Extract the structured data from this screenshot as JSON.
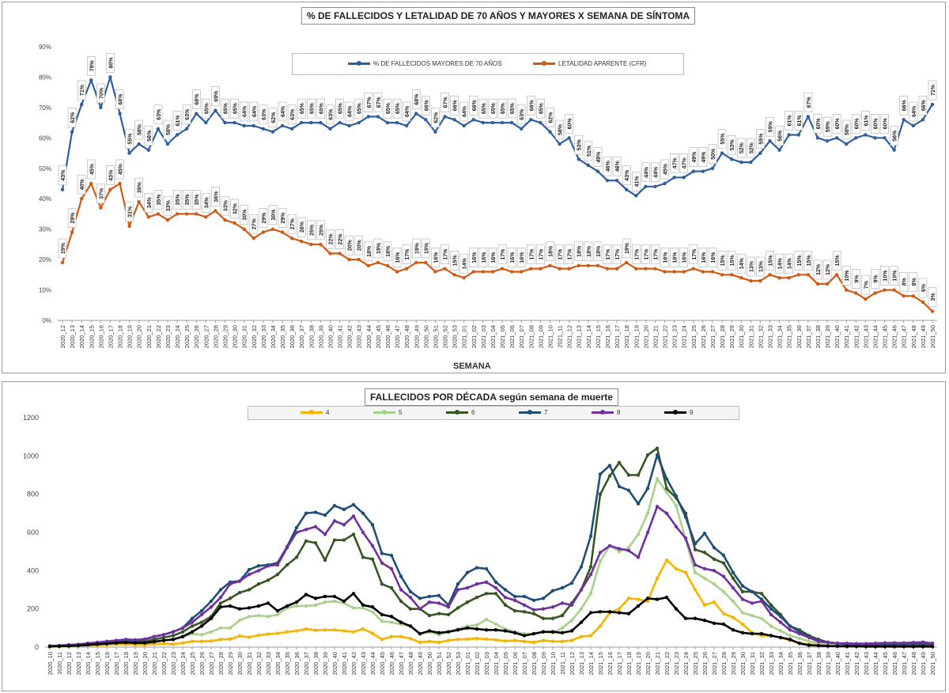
{
  "chart_data": [
    {
      "type": "line",
      "title": "% DE FALLECIDOS Y LETALIDAD DE 70 AÑOS Y MAYORES X SEMANA DE SÍNTOMA",
      "xlabel": "SEMANA",
      "ylabel": "",
      "ylim": [
        0,
        90
      ],
      "yticks": [
        "0%",
        "10%",
        "20%",
        "30%",
        "40%",
        "50%",
        "60%",
        "70%",
        "80%",
        "90%"
      ],
      "grid": false,
      "legend": "top-center",
      "x": [
        "2020_12",
        "2020_13",
        "2020_14",
        "2020_15",
        "2020_16",
        "2020_17",
        "2020_18",
        "2020_19",
        "2020_20",
        "2020_21",
        "2020_22",
        "2020_23",
        "2020_24",
        "2020_25",
        "2020_26",
        "2020_27",
        "2020_28",
        "2020_29",
        "2020_30",
        "2020_31",
        "2020_32",
        "2020_33",
        "2020_34",
        "2020_35",
        "2020_36",
        "2020_37",
        "2020_38",
        "2020_39",
        "2020_40",
        "2020_41",
        "2020_42",
        "2020_43",
        "2020_44",
        "2020_45",
        "2020_46",
        "2020_47",
        "2020_48",
        "2020_49",
        "2020_50",
        "2020_51",
        "2020_52",
        "2020_53",
        "2021_01",
        "2021_02",
        "2021_03",
        "2021_04",
        "2021_05",
        "2021_06",
        "2021_07",
        "2021_08",
        "2021_09",
        "2021_10",
        "2021_11",
        "2021_12",
        "2021_13",
        "2021_14",
        "2021_15",
        "2021_16",
        "2021_17",
        "2021_18",
        "2021_19",
        "2021_20",
        "2021_21",
        "2021_22",
        "2021_23",
        "2021_24",
        "2021_25",
        "2021_26",
        "2021_27",
        "2021_28",
        "2021_29",
        "2021_30",
        "2021_31",
        "2021_32",
        "2021_33",
        "2021_34",
        "2021_35",
        "2021_36",
        "2021_37",
        "2021_38",
        "2021_39",
        "2021_40",
        "2021_41",
        "2021_42",
        "2021_43",
        "2021_44",
        "2021_45",
        "2021_46",
        "2021_47",
        "2021_48",
        "2021_49",
        "2021_50"
      ],
      "series": [
        {
          "name": "% DE FALLECIDOS MAYORES DE 70 AÑOS",
          "color": "#2e5e9e",
          "values": [
            43,
            62,
            71,
            79,
            70,
            80,
            68,
            55,
            58,
            56,
            63,
            58,
            61,
            63,
            68,
            65,
            69,
            65,
            65,
            64,
            64,
            63,
            62,
            64,
            63,
            65,
            65,
            65,
            63,
            65,
            64,
            65,
            67,
            67,
            65,
            65,
            64,
            68,
            66,
            62,
            67,
            66,
            64,
            66,
            65,
            65,
            65,
            65,
            63,
            66,
            65,
            62,
            58,
            60,
            53,
            51,
            49,
            46,
            46,
            43,
            41,
            44,
            44,
            45,
            47,
            47,
            49,
            49,
            50,
            55,
            53,
            52,
            52,
            55,
            59,
            56,
            61,
            61,
            67,
            60,
            59,
            60,
            58,
            60,
            61,
            60,
            60,
            56,
            66,
            64,
            66,
            71
          ]
        },
        {
          "name": "LETALIDAD APARENTE (CFR)",
          "color": "#d05a14",
          "values": [
            19,
            29,
            40,
            45,
            37,
            43,
            45,
            31,
            39,
            34,
            35,
            33,
            35,
            35,
            35,
            34,
            36,
            33,
            32,
            30,
            27,
            29,
            30,
            29,
            27,
            26,
            25,
            25,
            22,
            22,
            20,
            20,
            18,
            19,
            18,
            16,
            17,
            19,
            19,
            16,
            17,
            15,
            14,
            16,
            16,
            16,
            17,
            16,
            16,
            17,
            17,
            18,
            17,
            17,
            18,
            18,
            18,
            17,
            17,
            19,
            17,
            17,
            17,
            16,
            16,
            16,
            17,
            16,
            16,
            15,
            15,
            14,
            13,
            13,
            15,
            14,
            14,
            15,
            15,
            12,
            12,
            15,
            10,
            9,
            7,
            9,
            10,
            10,
            8,
            8,
            6,
            3
          ]
        }
      ]
    },
    {
      "type": "line",
      "title": "FALLECIDOS POR DÉCADA según semana de muerte",
      "xlabel": "",
      "ylabel": "",
      "ylim": [
        0,
        1200
      ],
      "yticks": [
        "0",
        "200",
        "400",
        "600",
        "800",
        "1000",
        "1200"
      ],
      "grid": false,
      "legend": "top-center",
      "x": [
        "2020_10",
        "2020_11",
        "2020_12",
        "2020_13",
        "2020_14",
        "2020_15",
        "2020_16",
        "2020_17",
        "2020_18",
        "2020_19",
        "2020_20",
        "2020_21",
        "2020_22",
        "2020_23",
        "2020_24",
        "2020_25",
        "2020_26",
        "2020_27",
        "2020_28",
        "2020_29",
        "2020_30",
        "2020_31",
        "2020_32",
        "2020_33",
        "2020_34",
        "2020_35",
        "2020_36",
        "2020_37",
        "2020_38",
        "2020_39",
        "2020_40",
        "2020_41",
        "2020_42",
        "2020_43",
        "2020_44",
        "2020_45",
        "2020_46",
        "2020_47",
        "2020_48",
        "2020_49",
        "2020_50",
        "2020_51",
        "2020_52",
        "2020_53",
        "2021_01",
        "2021_02",
        "2021_03",
        "2021_04",
        "2021_05",
        "2021_06",
        "2021_07",
        "2021_08",
        "2021_09",
        "2021_10",
        "2021_11",
        "2021_12",
        "2021_13",
        "2021_14",
        "2021_15",
        "2021_16",
        "2021_17",
        "2021_18",
        "2021_19",
        "2021_20",
        "2021_21",
        "2021_22",
        "2021_23",
        "2021_24",
        "2021_25",
        "2021_26",
        "2021_27",
        "2021_28",
        "2021_29",
        "2021_30",
        "2021_31",
        "2021_32",
        "2021_33",
        "2021_34",
        "2021_35",
        "2021_36",
        "2021_37",
        "2021_38",
        "2021_39",
        "2021_40",
        "2021_41",
        "2021_42",
        "2021_43",
        "2021_44",
        "2021_45",
        "2021_46",
        "2021_47",
        "2021_48",
        "2021_49",
        "2021_50"
      ],
      "series": [
        {
          "name": "4",
          "color": "#f5b400",
          "values": [
            2,
            3,
            5,
            6,
            8,
            10,
            12,
            14,
            14,
            12,
            12,
            16,
            18,
            15,
            22,
            30,
            30,
            32,
            40,
            42,
            58,
            52,
            62,
            68,
            72,
            80,
            85,
            95,
            88,
            90,
            90,
            85,
            80,
            95,
            72,
            40,
            55,
            55,
            45,
            25,
            30,
            25,
            35,
            40,
            42,
            45,
            42,
            38,
            32,
            35,
            30,
            25,
            35,
            30,
            30,
            35,
            55,
            60,
            110,
            180,
            200,
            255,
            250,
            240,
            360,
            455,
            410,
            390,
            300,
            220,
            235,
            175,
            155,
            120,
            75,
            60,
            60,
            50,
            35,
            20,
            15,
            10,
            8,
            6,
            5,
            5,
            4,
            4,
            4,
            4,
            4,
            4,
            4,
            4
          ]
        },
        {
          "name": "5",
          "color": "#a9d18e",
          "values": [
            3,
            4,
            6,
            8,
            10,
            14,
            18,
            22,
            24,
            22,
            22,
            30,
            35,
            40,
            55,
            70,
            65,
            80,
            100,
            100,
            140,
            160,
            165,
            160,
            170,
            205,
            215,
            215,
            220,
            235,
            240,
            230,
            205,
            205,
            185,
            135,
            130,
            120,
            110,
            70,
            80,
            65,
            80,
            95,
            110,
            115,
            145,
            120,
            95,
            80,
            70,
            70,
            80,
            75,
            100,
            140,
            200,
            280,
            450,
            530,
            500,
            520,
            590,
            700,
            880,
            810,
            740,
            560,
            390,
            360,
            330,
            290,
            240,
            180,
            165,
            150,
            110,
            85,
            60,
            45,
            30,
            20,
            15,
            10,
            8,
            6,
            5,
            5,
            5,
            5,
            5,
            5,
            5,
            5
          ]
        },
        {
          "name": "6",
          "color": "#375623",
          "values": [
            4,
            5,
            8,
            10,
            14,
            18,
            22,
            26,
            30,
            28,
            30,
            40,
            50,
            60,
            80,
            110,
            130,
            160,
            230,
            255,
            285,
            300,
            330,
            350,
            380,
            430,
            470,
            555,
            545,
            455,
            560,
            560,
            590,
            470,
            460,
            330,
            310,
            240,
            200,
            200,
            165,
            175,
            170,
            205,
            235,
            260,
            280,
            280,
            220,
            190,
            185,
            175,
            150,
            150,
            165,
            230,
            300,
            420,
            800,
            895,
            965,
            900,
            900,
            1005,
            1040,
            830,
            780,
            700,
            510,
            495,
            460,
            440,
            360,
            290,
            290,
            280,
            220,
            170,
            110,
            90,
            60,
            40,
            25,
            20,
            15,
            12,
            10,
            10,
            10,
            10,
            10,
            10,
            10,
            10
          ]
        },
        {
          "name": "7",
          "color": "#1f4e79",
          "values": [
            5,
            6,
            10,
            12,
            18,
            22,
            28,
            32,
            36,
            34,
            40,
            55,
            65,
            80,
            100,
            150,
            190,
            240,
            300,
            340,
            345,
            405,
            425,
            430,
            440,
            525,
            625,
            700,
            705,
            690,
            740,
            720,
            745,
            700,
            640,
            490,
            480,
            370,
            290,
            255,
            265,
            270,
            220,
            330,
            390,
            415,
            410,
            340,
            300,
            265,
            265,
            245,
            255,
            295,
            310,
            335,
            420,
            580,
            905,
            950,
            840,
            820,
            750,
            830,
            1005,
            880,
            790,
            680,
            540,
            595,
            520,
            480,
            390,
            320,
            290,
            250,
            200,
            160,
            110,
            80,
            55,
            35,
            25,
            20,
            15,
            12,
            10,
            10,
            12,
            14,
            16,
            18,
            20,
            20
          ]
        },
        {
          "name": "8",
          "color": "#7030a0",
          "values": [
            6,
            8,
            12,
            14,
            20,
            25,
            30,
            35,
            40,
            38,
            42,
            55,
            65,
            80,
            100,
            130,
            170,
            210,
            260,
            330,
            345,
            380,
            400,
            425,
            430,
            520,
            600,
            615,
            630,
            590,
            660,
            640,
            685,
            600,
            530,
            440,
            410,
            300,
            260,
            200,
            235,
            230,
            210,
            300,
            310,
            330,
            340,
            310,
            260,
            245,
            220,
            195,
            200,
            210,
            230,
            220,
            300,
            380,
            495,
            530,
            515,
            505,
            470,
            600,
            735,
            700,
            630,
            570,
            430,
            410,
            400,
            370,
            310,
            250,
            230,
            240,
            170,
            130,
            90,
            70,
            50,
            30,
            25,
            20,
            20,
            18,
            18,
            20,
            22,
            22,
            22,
            24,
            26,
            20
          ]
        },
        {
          "name": "9",
          "color": "#000000",
          "values": [
            4,
            5,
            6,
            8,
            12,
            15,
            18,
            22,
            24,
            22,
            22,
            28,
            35,
            40,
            55,
            80,
            110,
            150,
            210,
            215,
            200,
            205,
            215,
            230,
            190,
            215,
            235,
            275,
            255,
            265,
            265,
            240,
            280,
            220,
            210,
            170,
            160,
            130,
            110,
            70,
            85,
            75,
            80,
            90,
            100,
            95,
            90,
            90,
            85,
            75,
            60,
            70,
            80,
            80,
            75,
            85,
            130,
            180,
            185,
            185,
            180,
            175,
            215,
            255,
            250,
            260,
            200,
            150,
            150,
            140,
            125,
            120,
            90,
            75,
            70,
            70,
            60,
            50,
            40,
            20,
            10,
            8,
            6,
            5,
            4,
            4,
            3,
            3,
            3,
            3,
            3,
            3,
            3,
            3
          ]
        }
      ]
    }
  ]
}
